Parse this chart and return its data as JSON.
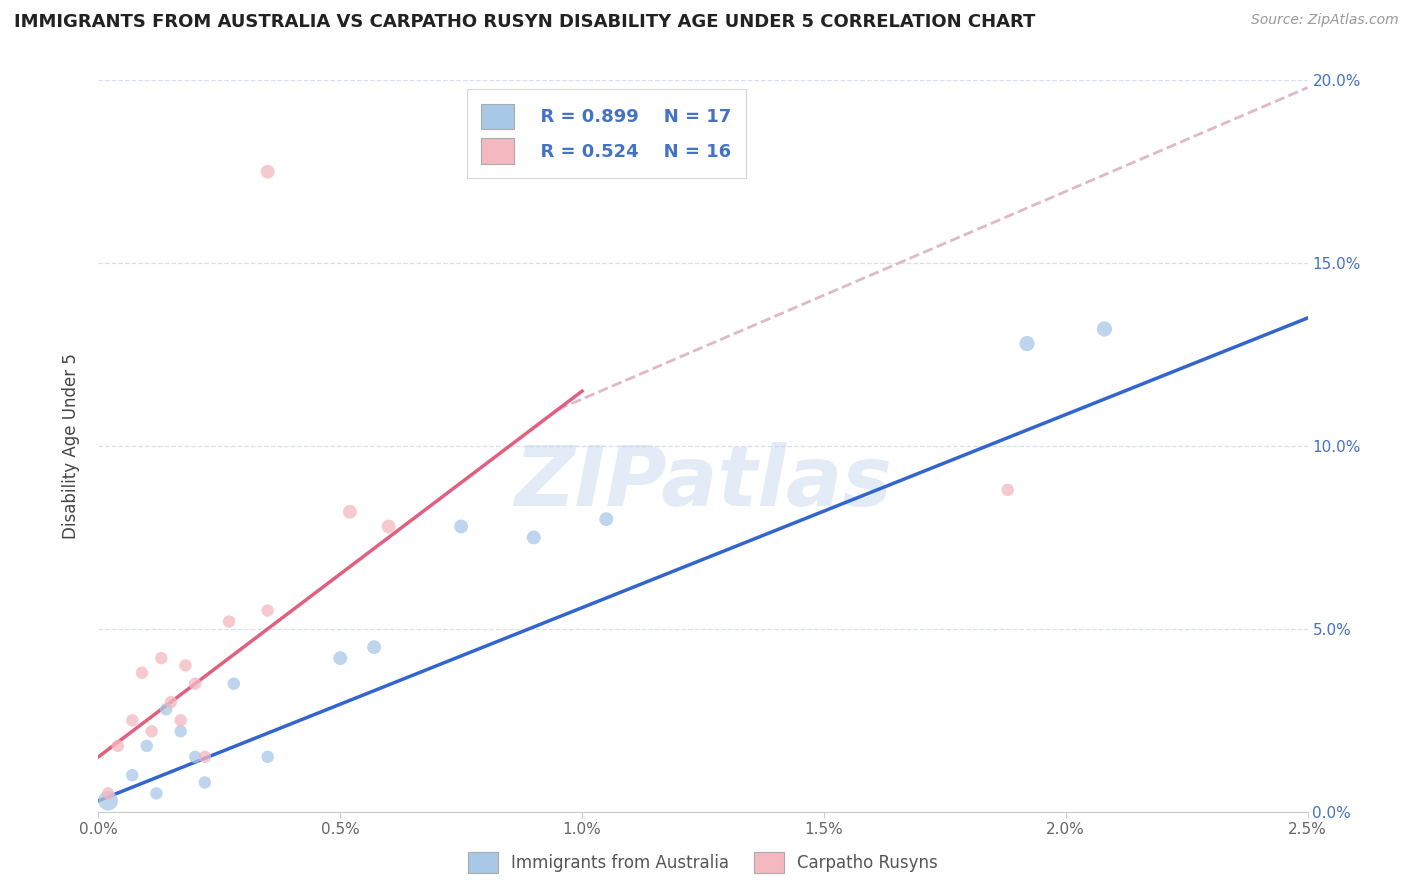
{
  "title": "IMMIGRANTS FROM AUSTRALIA VS CARPATHO RUSYN DISABILITY AGE UNDER 5 CORRELATION CHART",
  "source": "Source: ZipAtlas.com",
  "ylabel": "Disability Age Under 5",
  "legend1_R": "R = 0.899",
  "legend1_N": "N = 17",
  "legend2_R": "R = 0.524",
  "legend2_N": "N = 16",
  "legend_label1": "Immigrants from Australia",
  "legend_label2": "Carpatho Rusyns",
  "blue_color": "#a8c8e8",
  "pink_color": "#f4b8c0",
  "blue_line_color": "#3366cc",
  "pink_line_color": "#e06080",
  "dashed_line_color": "#e0b8c8",
  "watermark": "ZIPatlas",
  "xlim": [
    0.0,
    2.5
  ],
  "ylim": [
    0.0,
    20.0
  ],
  "aus_points_x": [
    0.02,
    0.07,
    0.1,
    0.12,
    0.14,
    0.17,
    0.2,
    0.22,
    0.28,
    0.35,
    0.5,
    0.57,
    0.75,
    0.9,
    1.05,
    1.92,
    2.08
  ],
  "aus_points_y": [
    0.3,
    1.0,
    1.8,
    0.5,
    2.8,
    2.2,
    1.5,
    0.8,
    3.5,
    1.5,
    4.2,
    4.5,
    7.8,
    7.5,
    8.0,
    12.8,
    13.2
  ],
  "aus_sizes": [
    200,
    80,
    80,
    80,
    80,
    80,
    80,
    80,
    80,
    80,
    100,
    100,
    100,
    100,
    100,
    120,
    120
  ],
  "rus_points_x": [
    0.02,
    0.04,
    0.07,
    0.09,
    0.11,
    0.13,
    0.15,
    0.17,
    0.18,
    0.2,
    0.22,
    0.27,
    0.35,
    0.52,
    0.6,
    1.88
  ],
  "rus_points_y": [
    0.5,
    1.8,
    2.5,
    3.8,
    2.2,
    4.2,
    3.0,
    2.5,
    4.0,
    3.5,
    1.5,
    5.2,
    5.5,
    8.2,
    7.8,
    8.8
  ],
  "rus_sizes": [
    80,
    80,
    80,
    80,
    80,
    80,
    80,
    80,
    80,
    80,
    80,
    80,
    80,
    100,
    100,
    80
  ],
  "rus_outlier_x": 0.35,
  "rus_outlier_y": 17.5,
  "rus_outlier_size": 100,
  "blue_line_x0": 0.0,
  "blue_line_y0": 0.3,
  "blue_line_x1": 2.5,
  "blue_line_y1": 13.5,
  "pink_solid_x0": 0.0,
  "pink_solid_y0": 1.5,
  "pink_solid_x1": 1.0,
  "pink_solid_y1": 11.5,
  "pink_dash_x0": 0.95,
  "pink_dash_y0": 11.0,
  "pink_dash_x1": 2.5,
  "pink_dash_y1": 19.8
}
